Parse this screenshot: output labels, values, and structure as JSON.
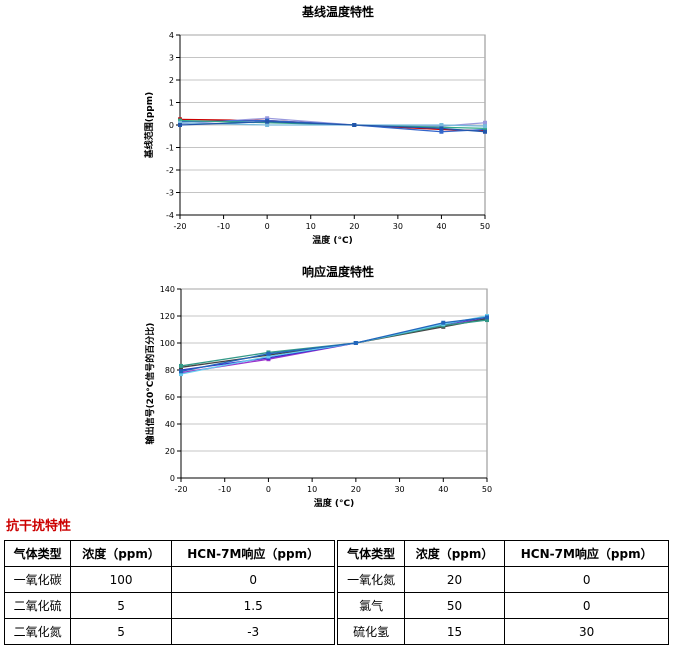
{
  "charts": [
    {
      "id": "baseline",
      "chart_data": {
        "type": "line",
        "title": "基线温度特性",
        "xlabel": "温度 (°C)",
        "ylabel": "基线范围(ppm)",
        "x": [
          -20,
          0,
          20,
          40,
          50
        ],
        "xticks": [
          -20,
          -10,
          0,
          10,
          20,
          30,
          40,
          50
        ],
        "yticks": [
          -4,
          -3,
          -2,
          -1,
          0,
          1,
          2,
          3,
          4
        ],
        "xlim": [
          -20,
          50
        ],
        "ylim": [
          -4,
          4
        ],
        "grid": true,
        "series": [
          {
            "values": [
              0.25,
              0.2,
              0.0,
              -0.2,
              -0.25
            ],
            "color": "#cc0000"
          },
          {
            "values": [
              0.05,
              0.3,
              0.0,
              -0.05,
              0.1
            ],
            "color": "#9999dd"
          },
          {
            "values": [
              0.15,
              0.2,
              0.0,
              -0.3,
              -0.2
            ],
            "color": "#3366cc"
          },
          {
            "values": [
              0.2,
              0.1,
              0.0,
              -0.1,
              -0.15
            ],
            "color": "#33aa88"
          },
          {
            "values": [
              0.1,
              0.0,
              0.0,
              0.0,
              -0.05
            ],
            "color": "#77bbdd"
          },
          {
            "values": [
              0.0,
              0.15,
              0.0,
              -0.15,
              -0.3
            ],
            "color": "#2255aa"
          }
        ]
      }
    },
    {
      "id": "response",
      "chart_data": {
        "type": "line",
        "title": "响应温度特性",
        "xlabel": "温度 (°C)",
        "ylabel": "输出信号(20°C信号的百分比)",
        "x": [
          -20,
          0,
          20,
          40,
          50
        ],
        "xticks": [
          -20,
          -10,
          0,
          10,
          20,
          30,
          40,
          50
        ],
        "yticks": [
          0,
          20,
          40,
          60,
          80,
          100,
          120,
          140
        ],
        "xlim": [
          -20,
          50
        ],
        "ylim": [
          0,
          140
        ],
        "grid": true,
        "series": [
          {
            "values": [
              78,
              88,
              100,
              113,
              118
            ],
            "color": "#9933cc"
          },
          {
            "values": [
              80,
              89,
              100,
              114,
              119
            ],
            "color": "#3333cc"
          },
          {
            "values": [
              82,
              91,
              100,
              112,
              118
            ],
            "color": "#444444"
          },
          {
            "values": [
              83,
              93,
              100,
              113,
              117
            ],
            "color": "#339988"
          },
          {
            "values": [
              77,
              90,
              100,
              114,
              120
            ],
            "color": "#66ccee"
          },
          {
            "values": [
              79,
              92,
              100,
              115,
              119
            ],
            "color": "#2266bb"
          }
        ]
      }
    }
  ],
  "interference": {
    "title": "抗干扰特性",
    "headers": [
      "气体类型",
      "浓度（ppm）",
      "HCN-7M响应（ppm）",
      "气体类型",
      "浓度（ppm）",
      "HCN-7M响应（ppm）"
    ],
    "rows": [
      [
        "一氧化碳",
        "100",
        "0",
        "一氧化氮",
        "20",
        "0"
      ],
      [
        "二氧化硫",
        "5",
        "1.5",
        "氯气",
        "50",
        "0"
      ],
      [
        "二氧化氮",
        "5",
        "-3",
        "硫化氢",
        "15",
        "30"
      ]
    ]
  }
}
